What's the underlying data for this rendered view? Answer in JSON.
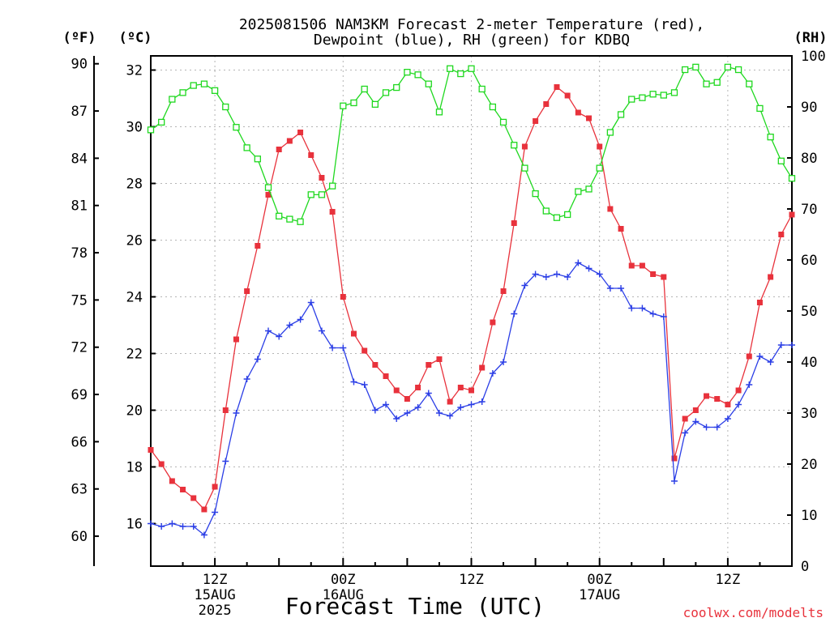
{
  "chart_data": {
    "type": "line",
    "title": "2025081506 NAM3KM Forecast 2-meter Temperature (red),",
    "subtitle": "Dewpoint (blue), RH (green) for KDBQ",
    "xlabel": "Forecast Time (UTC)",
    "credit": "coolwx.com/modelts",
    "ylabel_left_f": "(ºF)",
    "ylabel_left_c": "(ºC)",
    "ylabel_right": "(RH)",
    "ylim": [
      14.5,
      32.5
    ],
    "y2lim": [
      0,
      100
    ],
    "yticks_c": [
      16,
      18,
      20,
      22,
      24,
      26,
      28,
      30,
      32
    ],
    "yticks_f": [
      60,
      63,
      66,
      69,
      72,
      75,
      78,
      81,
      84,
      87,
      90
    ],
    "yticks_rh": [
      0,
      10,
      20,
      30,
      40,
      50,
      60,
      70,
      80,
      90,
      100
    ],
    "grid": true,
    "x_start": "2025-08-15 06Z",
    "x_step": "1 hour",
    "x_ticks": [
      {
        "hour": 6,
        "label": "12Z",
        "sub": [
          "15AUG",
          "2025"
        ]
      },
      {
        "hour": 18,
        "label": "00Z",
        "sub": [
          "16AUG"
        ]
      },
      {
        "hour": 30,
        "label": "12Z",
        "sub": []
      },
      {
        "hour": 42,
        "label": "00Z",
        "sub": [
          "17AUG"
        ]
      },
      {
        "hour": 54,
        "label": "12Z",
        "sub": []
      }
    ],
    "series": [
      {
        "name": "Temperature",
        "axis": "C",
        "color": "#e8323c",
        "marker": "filled-square",
        "values": [
          18.6,
          18.1,
          17.5,
          17.2,
          16.9,
          16.5,
          17.3,
          20.0,
          22.5,
          24.2,
          25.8,
          27.6,
          29.2,
          29.5,
          29.8,
          29.0,
          28.2,
          27.0,
          24.0,
          22.7,
          22.1,
          21.6,
          21.2,
          20.7,
          20.4,
          20.8,
          21.6,
          21.8,
          20.3,
          20.8,
          20.7,
          21.5,
          23.1,
          24.2,
          26.6,
          29.3,
          30.2,
          30.8,
          31.4,
          31.1,
          30.5,
          30.3,
          29.3,
          27.1,
          26.4,
          25.1,
          25.1,
          24.8,
          24.7,
          18.3,
          19.7,
          20.0,
          20.5,
          20.4,
          20.2,
          20.7,
          21.9,
          23.8,
          24.7,
          26.2,
          26.9
        ]
      },
      {
        "name": "Dewpoint",
        "axis": "C",
        "color": "#2b3ee6",
        "marker": "plus",
        "values": [
          16.0,
          15.9,
          16.0,
          15.9,
          15.9,
          15.6,
          16.4,
          18.2,
          19.9,
          21.1,
          21.8,
          22.8,
          22.6,
          23.0,
          23.2,
          23.8,
          22.8,
          22.2,
          22.2,
          21.0,
          20.9,
          20.0,
          20.2,
          19.7,
          19.9,
          20.1,
          20.6,
          19.9,
          19.8,
          20.1,
          20.2,
          20.3,
          21.3,
          21.7,
          23.4,
          24.4,
          24.8,
          24.7,
          24.8,
          24.7,
          25.2,
          25.0,
          24.8,
          24.3,
          24.3,
          23.6,
          23.6,
          23.4,
          23.3,
          17.5,
          19.2,
          19.6,
          19.4,
          19.4,
          19.7,
          20.2,
          20.9,
          21.9,
          21.7,
          22.3,
          22.3
        ]
      },
      {
        "name": "RH",
        "axis": "RH",
        "color": "#1fd81f",
        "marker": "open-square",
        "values": [
          85.5,
          87,
          91.5,
          92.8,
          94.2,
          94.5,
          93.2,
          90,
          86,
          82,
          79.8,
          74.2,
          68.6,
          68,
          67.5,
          72.8,
          72.8,
          74.5,
          90.2,
          90.8,
          93.5,
          90.5,
          92.8,
          93.8,
          96.8,
          96.3,
          94.5,
          89,
          97.5,
          96.5,
          97.5,
          93.5,
          90,
          87,
          82.5,
          78,
          73,
          69.6,
          68.3,
          68.9,
          73.4,
          73.9,
          78,
          85,
          88.5,
          91.5,
          91.8,
          92.5,
          92.3,
          92.8,
          97.3,
          97.8,
          94.5,
          94.8,
          97.8,
          97.3,
          94.5,
          89.7,
          84.1,
          79.4,
          76
        ]
      }
    ]
  }
}
